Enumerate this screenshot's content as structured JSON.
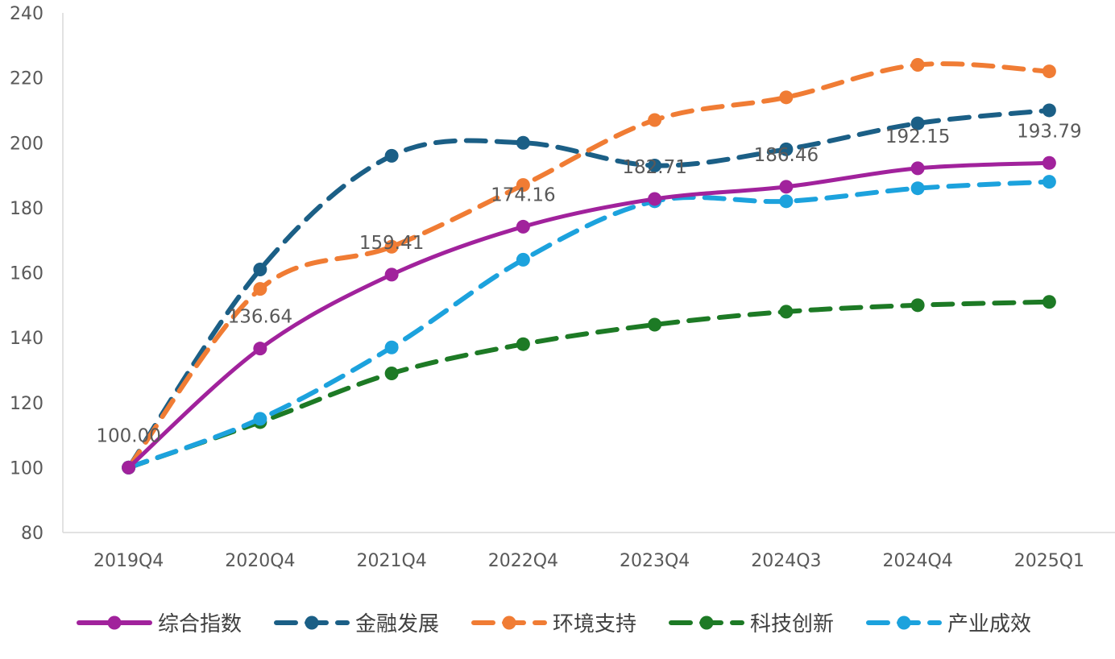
{
  "chart_data": {
    "type": "line",
    "title": "",
    "xlabel": "",
    "ylabel": "",
    "ylim": [
      80,
      240
    ],
    "yticks": [
      80,
      100,
      120,
      140,
      160,
      180,
      200,
      220,
      240
    ],
    "ytick_labels": [
      "80",
      "100",
      "120",
      "140",
      "160",
      "180",
      "200",
      "220",
      "240"
    ],
    "categories": [
      "2019Q4",
      "2020Q4",
      "2021Q4",
      "2022Q4",
      "2023Q4",
      "2024Q3",
      "2024Q4",
      "2025Q1"
    ],
    "legend_position": "bottom",
    "series": [
      {
        "name": "综合指数",
        "color": "#A1229C",
        "style": "solid",
        "values": [
          100.0,
          136.64,
          159.41,
          174.16,
          182.71,
          186.46,
          192.15,
          193.79
        ],
        "labels": [
          "100.00",
          "136.64",
          "159.41",
          "174.16",
          "182.71",
          "186.46",
          "192.15",
          "193.79"
        ]
      },
      {
        "name": "金融发展",
        "color": "#1B5F86",
        "style": "dashed",
        "values": [
          100,
          161,
          196,
          200,
          193,
          198,
          206,
          210
        ]
      },
      {
        "name": "环境支持",
        "color": "#F07C34",
        "style": "dashed",
        "values": [
          100,
          155,
          168,
          187,
          207,
          214,
          224,
          222
        ]
      },
      {
        "name": "科技创新",
        "color": "#1D7A25",
        "style": "dashed",
        "values": [
          100,
          114,
          129,
          138,
          144,
          148,
          150,
          151
        ]
      },
      {
        "name": "产业成效",
        "color": "#1CA2DD",
        "style": "dashed",
        "values": [
          100,
          115,
          137,
          164,
          182,
          182,
          186,
          188
        ]
      }
    ]
  }
}
